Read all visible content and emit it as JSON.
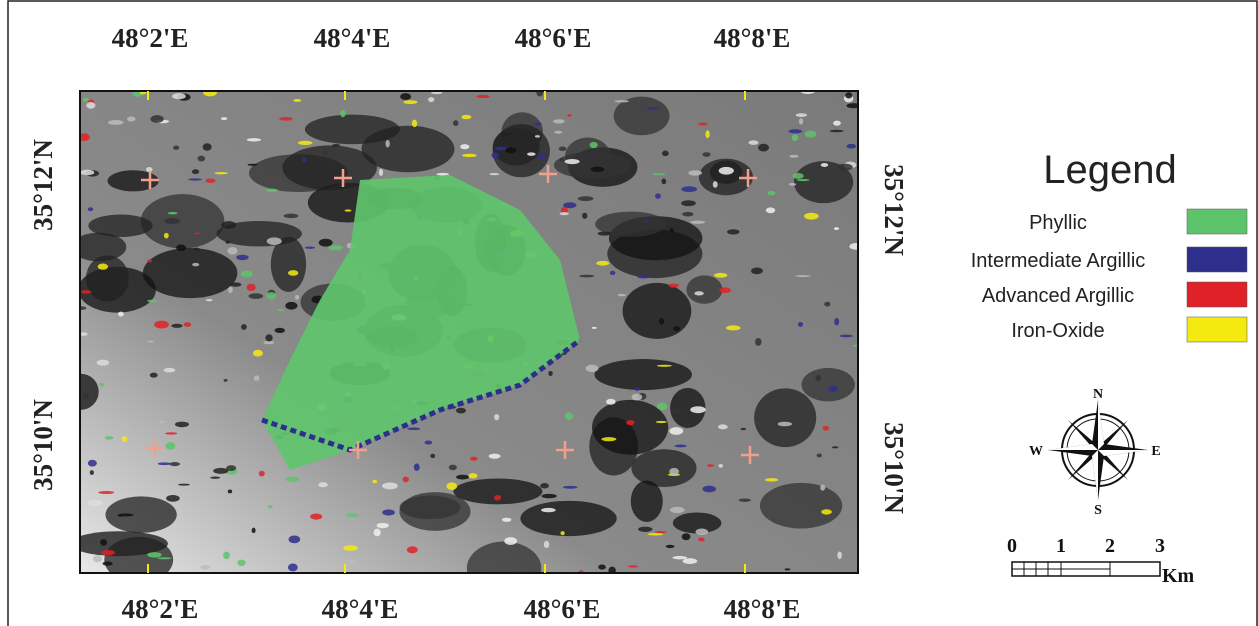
{
  "top_labels": [
    "48°2'E",
    "48°4'E",
    "48°6'E",
    "48°8'E"
  ],
  "bottom_labels": [
    "48°2'E",
    "48°4'E",
    "48°6'E",
    "48°8'E"
  ],
  "left_labels": [
    "35°12'N",
    "35°10'N"
  ],
  "right_labels": [
    "35°12'N",
    "35°10'N"
  ],
  "legend": {
    "title": "Legend",
    "items": [
      {
        "label": "Phyllic",
        "color": "#5ec46c"
      },
      {
        "label": "Intermediate Argillic",
        "color": "#2e2f8c"
      },
      {
        "label": "Advanced Argillic",
        "color": "#e02228"
      },
      {
        "label": "Iron-Oxide",
        "color": "#f4ea10"
      }
    ]
  },
  "compass": {
    "north": "N",
    "south": "S",
    "east": "E",
    "west": "W"
  },
  "scale": {
    "ticks": [
      0,
      1,
      2,
      3
    ],
    "unit": "Km"
  }
}
